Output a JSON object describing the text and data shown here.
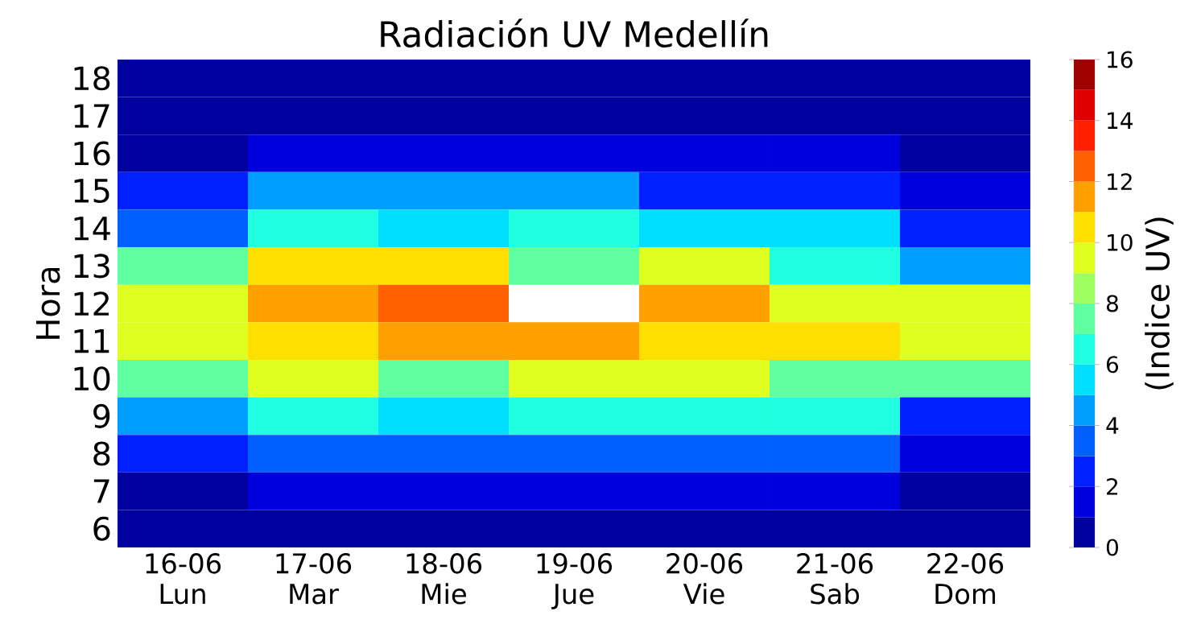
{
  "chart_data": {
    "type": "heatmap",
    "title": "Radiación UV Medellín",
    "ylabel": "Hora",
    "clabel": "(Indice UV)",
    "categories": [
      "16-06 Lun",
      "17-06 Mar",
      "18-06 Mie",
      "19-06 Jue",
      "20-06 Vie",
      "21-06 Sab",
      "22-06 Dom"
    ],
    "y_categories": [
      "18",
      "17",
      "16",
      "15",
      "14",
      "13",
      "12",
      "11",
      "10",
      "9",
      "8",
      "7",
      "6"
    ],
    "cells": [
      [
        0.5,
        0.5,
        0.5,
        0.5,
        0.5,
        0.5,
        0.5
      ],
      [
        0.5,
        0.5,
        0.5,
        0.5,
        0.5,
        0.5,
        0.5
      ],
      [
        0.5,
        1.5,
        1.5,
        1.5,
        1.5,
        1.5,
        0.5
      ],
      [
        2.5,
        4.5,
        4.5,
        4.5,
        2.5,
        2.5,
        1.5
      ],
      [
        3.5,
        6.5,
        5.5,
        6.5,
        5.5,
        5.5,
        2.5
      ],
      [
        7.5,
        10.5,
        10.5,
        7.5,
        9.5,
        6.5,
        4.5
      ],
      [
        9.5,
        11.5,
        12.5,
        null,
        11.5,
        9.5,
        9.5
      ],
      [
        9.5,
        10.5,
        11.5,
        11.5,
        10.5,
        10.5,
        9.5
      ],
      [
        7.5,
        9.5,
        7.5,
        9.5,
        9.5,
        7.5,
        7.5
      ],
      [
        4.5,
        6.5,
        5.5,
        6.5,
        6.5,
        6.5,
        2.5
      ],
      [
        2.5,
        3.5,
        3.5,
        3.5,
        3.5,
        3.5,
        1.5
      ],
      [
        0.5,
        1.5,
        1.5,
        1.5,
        1.5,
        1.5,
        0.5
      ],
      [
        0.5,
        0.5,
        0.5,
        0.5,
        0.5,
        0.5,
        0.5
      ]
    ],
    "clim": [
      0,
      16
    ],
    "cticks": [
      0,
      2,
      4,
      6,
      8,
      10,
      12,
      14,
      16
    ]
  }
}
